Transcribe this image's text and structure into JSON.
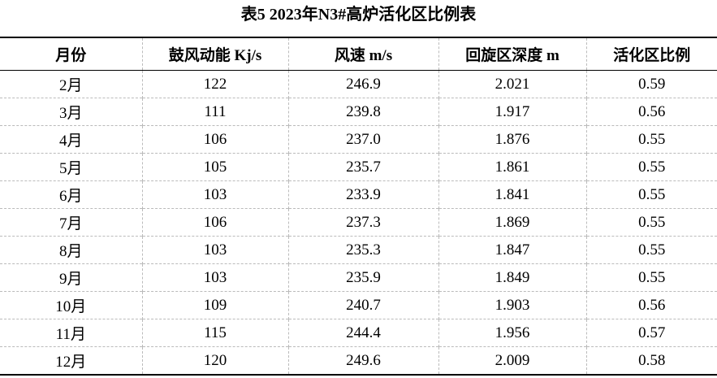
{
  "title": "表5 2023年N3#高炉活化区比例表",
  "table": {
    "headers": [
      "月份",
      "鼓风动能 Kj/s",
      "风速 m/s",
      "回旋区深度 m",
      "活化区比例"
    ],
    "rows": [
      [
        "2月",
        "122",
        "246.9",
        "2.021",
        "0.59"
      ],
      [
        "3月",
        "111",
        "239.8",
        "1.917",
        "0.56"
      ],
      [
        "4月",
        "106",
        "237.0",
        "1.876",
        "0.55"
      ],
      [
        "5月",
        "105",
        "235.7",
        "1.861",
        "0.55"
      ],
      [
        "6月",
        "103",
        "233.9",
        "1.841",
        "0.55"
      ],
      [
        "7月",
        "106",
        "237.3",
        "1.869",
        "0.55"
      ],
      [
        "8月",
        "103",
        "235.3",
        "1.847",
        "0.55"
      ],
      [
        "9月",
        "103",
        "235.9",
        "1.849",
        "0.55"
      ],
      [
        "10月",
        "109",
        "240.7",
        "1.903",
        "0.56"
      ],
      [
        "11月",
        "115",
        "244.4",
        "1.956",
        "0.57"
      ],
      [
        "12月",
        "120",
        "249.6",
        "2.009",
        "0.58"
      ]
    ]
  }
}
